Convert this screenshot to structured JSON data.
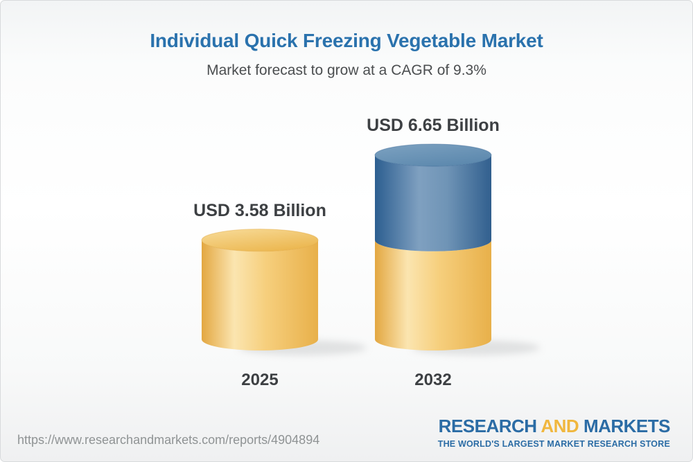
{
  "chart_data": {
    "type": "bar",
    "variant": "3d-stacked-cylinder",
    "title": "Individual Quick Freezing Vegetable Market",
    "subtitle": "Market forecast to grow at a CAGR of 9.3%",
    "cagr_percent": 9.3,
    "unit": "USD Billion",
    "categories": [
      "2025",
      "2032"
    ],
    "values": [
      3.58,
      6.65
    ],
    "value_labels": [
      "USD 3.58 Billion",
      "USD 6.65 Billion"
    ],
    "ylim": [
      0,
      7
    ],
    "legend": "none",
    "axes_visible": false,
    "colors": {
      "base_segment": "#F2C35E",
      "growth_segment": "#4F7CA8",
      "label_text": "#3D4043",
      "title_text": "#2A72AD"
    }
  },
  "footer": {
    "url": "https://www.researchandmarkets.com/reports/4904894",
    "logo": {
      "word1": "RESEARCH",
      "word2": "AND",
      "word3": "MARKETS",
      "tagline": "THE WORLD'S LARGEST MARKET RESEARCH STORE",
      "blue": "#2B6CA5",
      "gold": "#F0B73E"
    }
  }
}
